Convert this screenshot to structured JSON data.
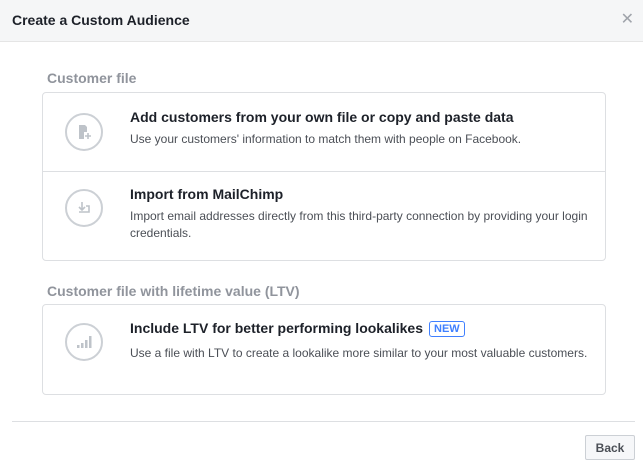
{
  "dialog": {
    "title": "Create a Custom Audience",
    "close_icon": "close-icon"
  },
  "sections": [
    {
      "label": "Customer file",
      "options": [
        {
          "icon": "file-add-icon",
          "title": "Add customers from your own file or copy and paste data",
          "description": "Use your customers' information to match them with people on Facebook."
        },
        {
          "icon": "import-icon",
          "title": "Import from MailChimp",
          "description": "Import email addresses directly from this third-party connection by providing your login credentials."
        }
      ]
    },
    {
      "label": "Customer file with lifetime value (LTV)",
      "options": [
        {
          "icon": "bar-chart-icon",
          "title": "Include LTV for better performing lookalikes",
          "badge": "NEW",
          "description": "Use a file with LTV to create a lookalike more similar to your most valuable customers."
        }
      ]
    }
  ],
  "footer": {
    "back_label": "Back"
  },
  "colors": {
    "badge": "#4080ff",
    "header_bg": "#f5f6f7",
    "section_label": "#90949c"
  }
}
